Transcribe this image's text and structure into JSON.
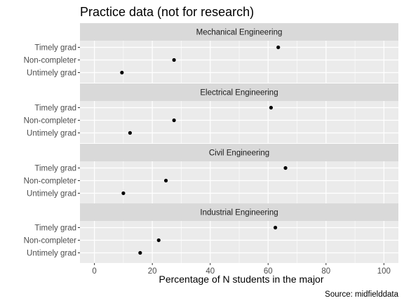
{
  "chart_data": {
    "type": "scatter",
    "title": "Practice data (not for research)",
    "xlabel": "Percentage of N students in the major",
    "ylabel": "",
    "caption": "Source: midfielddata",
    "xlim": [
      -5,
      105
    ],
    "xticks": [
      0,
      20,
      40,
      60,
      80,
      100
    ],
    "categories": [
      "Timely grad",
      "Non-completer",
      "Untimely grad"
    ],
    "grid": true,
    "point_color": "#000000",
    "panel_background": "#ebebeb",
    "strip_background": "#d9d9d9",
    "gridline_color": "#ffffff",
    "panels": [
      {
        "label": "Mechanical Engineering",
        "points": [
          {
            "category": "Timely grad",
            "x": 63.5
          },
          {
            "category": "Non-completer",
            "x": 27.5
          },
          {
            "category": "Untimely grad",
            "x": 9.5
          }
        ]
      },
      {
        "label": "Electrical Engineering",
        "points": [
          {
            "category": "Timely grad",
            "x": 61.0
          },
          {
            "category": "Non-completer",
            "x": 27.5
          },
          {
            "category": "Untimely grad",
            "x": 12.3
          }
        ]
      },
      {
        "label": "Civil Engineering",
        "points": [
          {
            "category": "Timely grad",
            "x": 66.0
          },
          {
            "category": "Non-completer",
            "x": 24.7
          },
          {
            "category": "Untimely grad",
            "x": 10.0
          }
        ]
      },
      {
        "label": "Industrial Engineering",
        "points": [
          {
            "category": "Timely grad",
            "x": 62.5
          },
          {
            "category": "Non-completer",
            "x": 22.2
          },
          {
            "category": "Untimely grad",
            "x": 15.8
          }
        ]
      }
    ]
  }
}
